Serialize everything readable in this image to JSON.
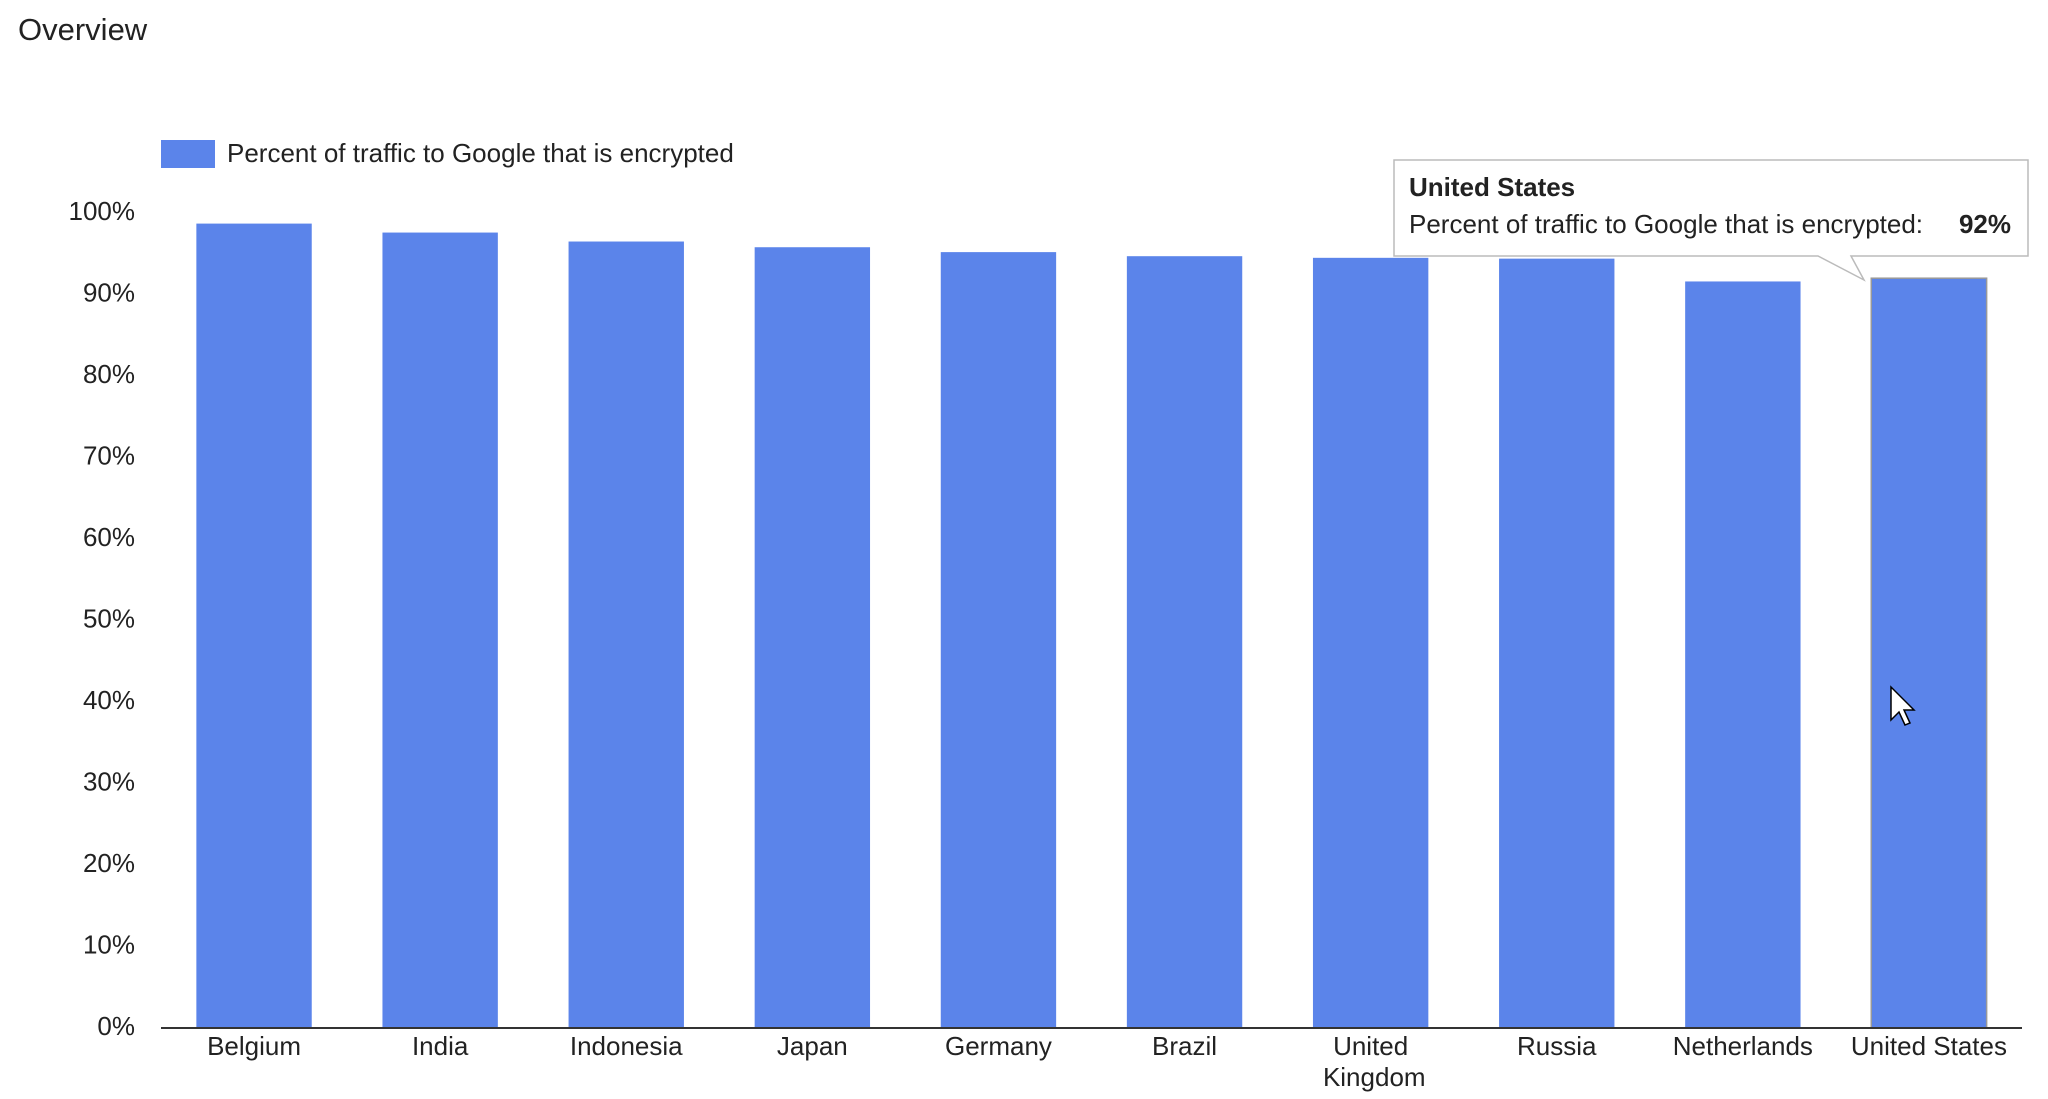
{
  "header": {
    "title": "Overview"
  },
  "chart_data": {
    "type": "bar",
    "categories": [
      "Belgium",
      "India",
      "Indonesia",
      "Japan",
      "Germany",
      "Brazil",
      "United Kingdom",
      "Russia",
      "Netherlands",
      "United States"
    ],
    "series": [
      {
        "name": "Percent of traffic to Google that is encrypted",
        "color": "#5b84ea",
        "values": [
          98.7,
          97.6,
          96.5,
          95.8,
          95.2,
          94.7,
          94.5,
          94.4,
          91.6,
          92
        ]
      }
    ],
    "ylim": [
      0,
      100
    ],
    "yticks": [
      {
        "value": 0,
        "label": "0%"
      },
      {
        "value": 10,
        "label": "10%"
      },
      {
        "value": 20,
        "label": "20%"
      },
      {
        "value": 30,
        "label": "30%"
      },
      {
        "value": 40,
        "label": "40%"
      },
      {
        "value": 50,
        "label": "50%"
      },
      {
        "value": 60,
        "label": "60%"
      },
      {
        "value": 70,
        "label": "70%"
      },
      {
        "value": 80,
        "label": "80%"
      },
      {
        "value": 90,
        "label": "90%"
      },
      {
        "value": 100,
        "label": "100%"
      }
    ],
    "legend": "top",
    "tooltip": {
      "title": "United States",
      "label": "Percent of traffic to Google that is encrypted:",
      "value": "92%"
    }
  }
}
